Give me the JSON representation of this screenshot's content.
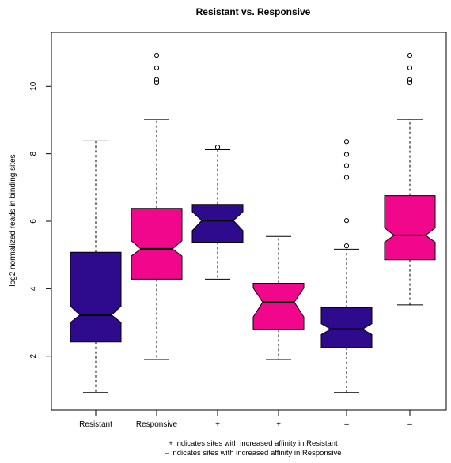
{
  "chart_data": {
    "type": "boxplot",
    "title": "Resistant vs. Responsive",
    "xlabel": "",
    "ylabel": "log2 normalized reads in binding sites",
    "ylim": [
      0.4,
      11.6
    ],
    "yticks": [
      2,
      4,
      6,
      8,
      10
    ],
    "notched": true,
    "grid": false,
    "categories": [
      "Resistant",
      "Responsive",
      "+",
      "+",
      "–",
      "–"
    ],
    "boxes": [
      {
        "label": "Resistant",
        "whisker_low": 0.92,
        "q1": 2.42,
        "median": 3.22,
        "q3": 5.08,
        "whisker_high": 8.38,
        "notch_low": 3.0,
        "notch_high": 3.48,
        "outliers": [],
        "color": "#2e0a8c"
      },
      {
        "label": "Responsive",
        "whisker_low": 1.9,
        "q1": 4.28,
        "median": 5.18,
        "q3": 6.38,
        "whisker_high": 9.02,
        "notch_low": 4.97,
        "notch_high": 5.42,
        "outliers": [
          10.12,
          10.2,
          10.55,
          10.92
        ],
        "color": "#f0078c"
      },
      {
        "label": "+",
        "whisker_low": 4.28,
        "q1": 5.38,
        "median": 6.02,
        "q3": 6.5,
        "whisker_high": 8.12,
        "notch_low": 5.72,
        "notch_high": 6.28,
        "outliers": [
          8.2
        ],
        "color": "#2e0a8c"
      },
      {
        "label": "+",
        "whisker_low": 1.9,
        "q1": 2.78,
        "median": 3.6,
        "q3": 4.16,
        "whisker_high": 5.55,
        "notch_low": 3.16,
        "notch_high": 4.02,
        "outliers": [],
        "color": "#f0078c"
      },
      {
        "label": "–",
        "whisker_low": 0.92,
        "q1": 2.25,
        "median": 2.8,
        "q3": 3.44,
        "whisker_high": 5.17,
        "notch_low": 2.64,
        "notch_high": 2.96,
        "outliers": [
          5.27,
          6.02,
          7.3,
          7.65,
          7.98,
          8.36
        ],
        "color": "#2e0a8c"
      },
      {
        "label": "–",
        "whisker_low": 3.52,
        "q1": 4.86,
        "median": 5.58,
        "q3": 6.76,
        "whisker_high": 9.02,
        "notch_low": 5.38,
        "notch_high": 5.8,
        "outliers": [
          10.12,
          10.2,
          10.55,
          10.92
        ],
        "color": "#f0078c"
      }
    ],
    "footnotes": [
      "+ indicates sites with increased affinity in Resistant",
      "– indicates sites with increased affinity in Responsive"
    ]
  }
}
